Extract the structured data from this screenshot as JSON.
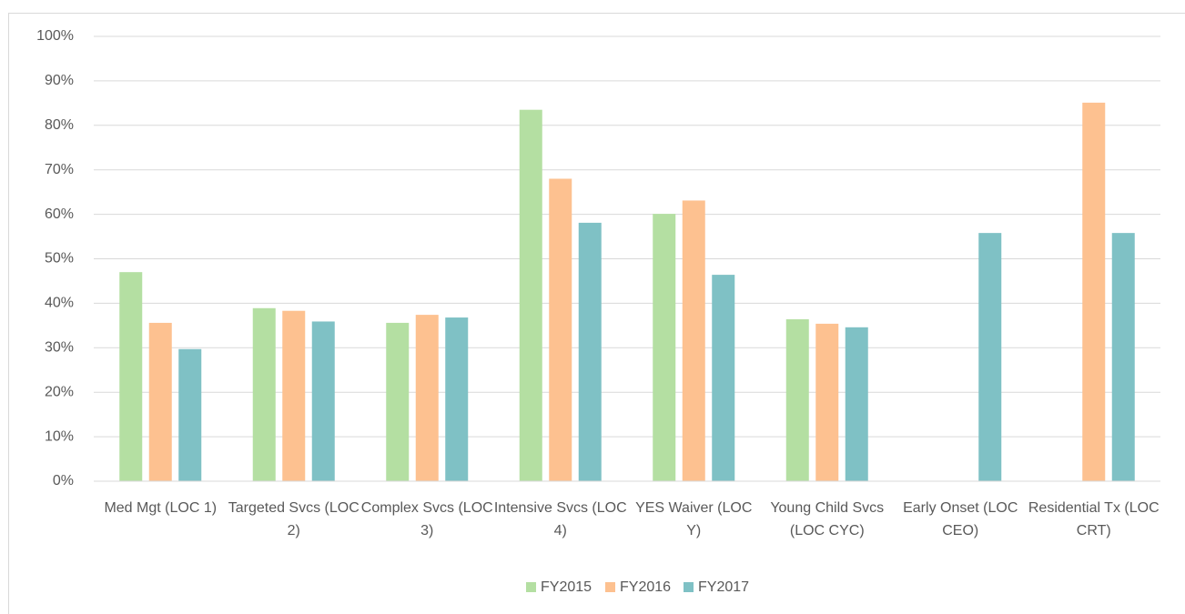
{
  "chart_data": {
    "type": "bar",
    "categories": [
      "Med Mgt (LOC 1)",
      "Targeted Svcs (LOC 2)",
      "Complex Svcs (LOC 3)",
      "Intensive Svcs (LOC 4)",
      "YES Waiver (LOC Y)",
      "Young Child Svcs (LOC CYC)",
      "Early Onset (LOC CEO)",
      "Residential Tx (LOC CRT)"
    ],
    "series": [
      {
        "name": "FY2015",
        "color": "#b4dfa2",
        "values": [
          47,
          38.9,
          35.6,
          83.5,
          60.1,
          36.4,
          null,
          null
        ]
      },
      {
        "name": "FY2016",
        "color": "#fdc190",
        "values": [
          35.6,
          38.3,
          37.4,
          68,
          63.1,
          35.4,
          null,
          85.1
        ]
      },
      {
        "name": "FY2017",
        "color": "#7fc1c5",
        "values": [
          29.7,
          35.9,
          36.8,
          58.1,
          46.4,
          34.6,
          55.8,
          55.8
        ]
      }
    ],
    "ylim": [
      0,
      100
    ],
    "yticks": [
      {
        "value": 0,
        "label": "0%"
      },
      {
        "value": 10,
        "label": "10%"
      },
      {
        "value": 20,
        "label": "20%"
      },
      {
        "value": 30,
        "label": "30%"
      },
      {
        "value": 40,
        "label": "40%"
      },
      {
        "value": 50,
        "label": "50%"
      },
      {
        "value": 60,
        "label": "60%"
      },
      {
        "value": 70,
        "label": "70%"
      },
      {
        "value": 80,
        "label": "80%"
      },
      {
        "value": 90,
        "label": "90%"
      },
      {
        "value": 100,
        "label": "100%"
      }
    ],
    "grid": true,
    "legend": "bottom"
  }
}
